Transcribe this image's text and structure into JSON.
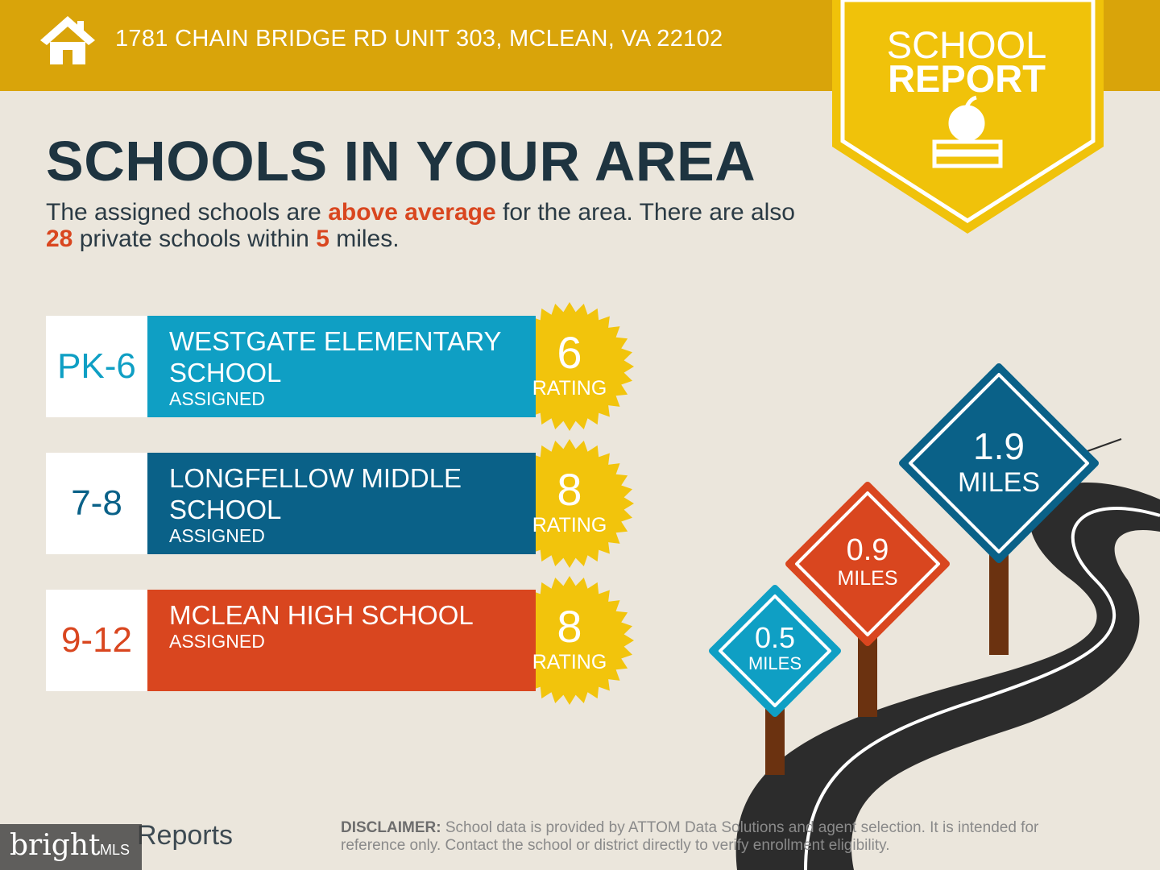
{
  "header": {
    "address": "1781 CHAIN BRIDGE RD UNIT 303, MCLEAN, VA 22102"
  },
  "badge": {
    "line1": "SCHOOL",
    "line2": "REPORT"
  },
  "title": "SCHOOLS IN YOUR AREA",
  "subtitle": [
    "The assigned schools are ",
    "above average",
    " for the area. There are also ",
    "28",
    " private schools within ",
    "5",
    " miles."
  ],
  "schools": [
    {
      "grades": "PK-6",
      "name": "WESTGATE ELEMENTARY SCHOOL",
      "status": "ASSIGNED",
      "rating": "6",
      "rating_label": "RATING"
    },
    {
      "grades": "7-8",
      "name": "LONGFELLOW MIDDLE SCHOOL",
      "status": "ASSIGNED",
      "rating": "8",
      "rating_label": "RATING"
    },
    {
      "grades": "9-12",
      "name": "MCLEAN HIGH SCHOOL",
      "status": "ASSIGNED",
      "rating": "8",
      "rating_label": "RATING"
    }
  ],
  "signs": [
    {
      "value": "1.9",
      "unit": "MILES"
    },
    {
      "value": "0.9",
      "unit": "MILES"
    },
    {
      "value": "0.5",
      "unit": "MILES"
    }
  ],
  "logo": {
    "text": "Reports"
  },
  "watermark": {
    "brand": "bright",
    "suffix": "MLS"
  },
  "disclaimer": {
    "label": "DISCLAIMER:",
    "text": "School data is provided by ATTOM Data Solutions and agent selection. It is intended for reference only. Contact the school or district directly to verify enrollment eligibility."
  }
}
